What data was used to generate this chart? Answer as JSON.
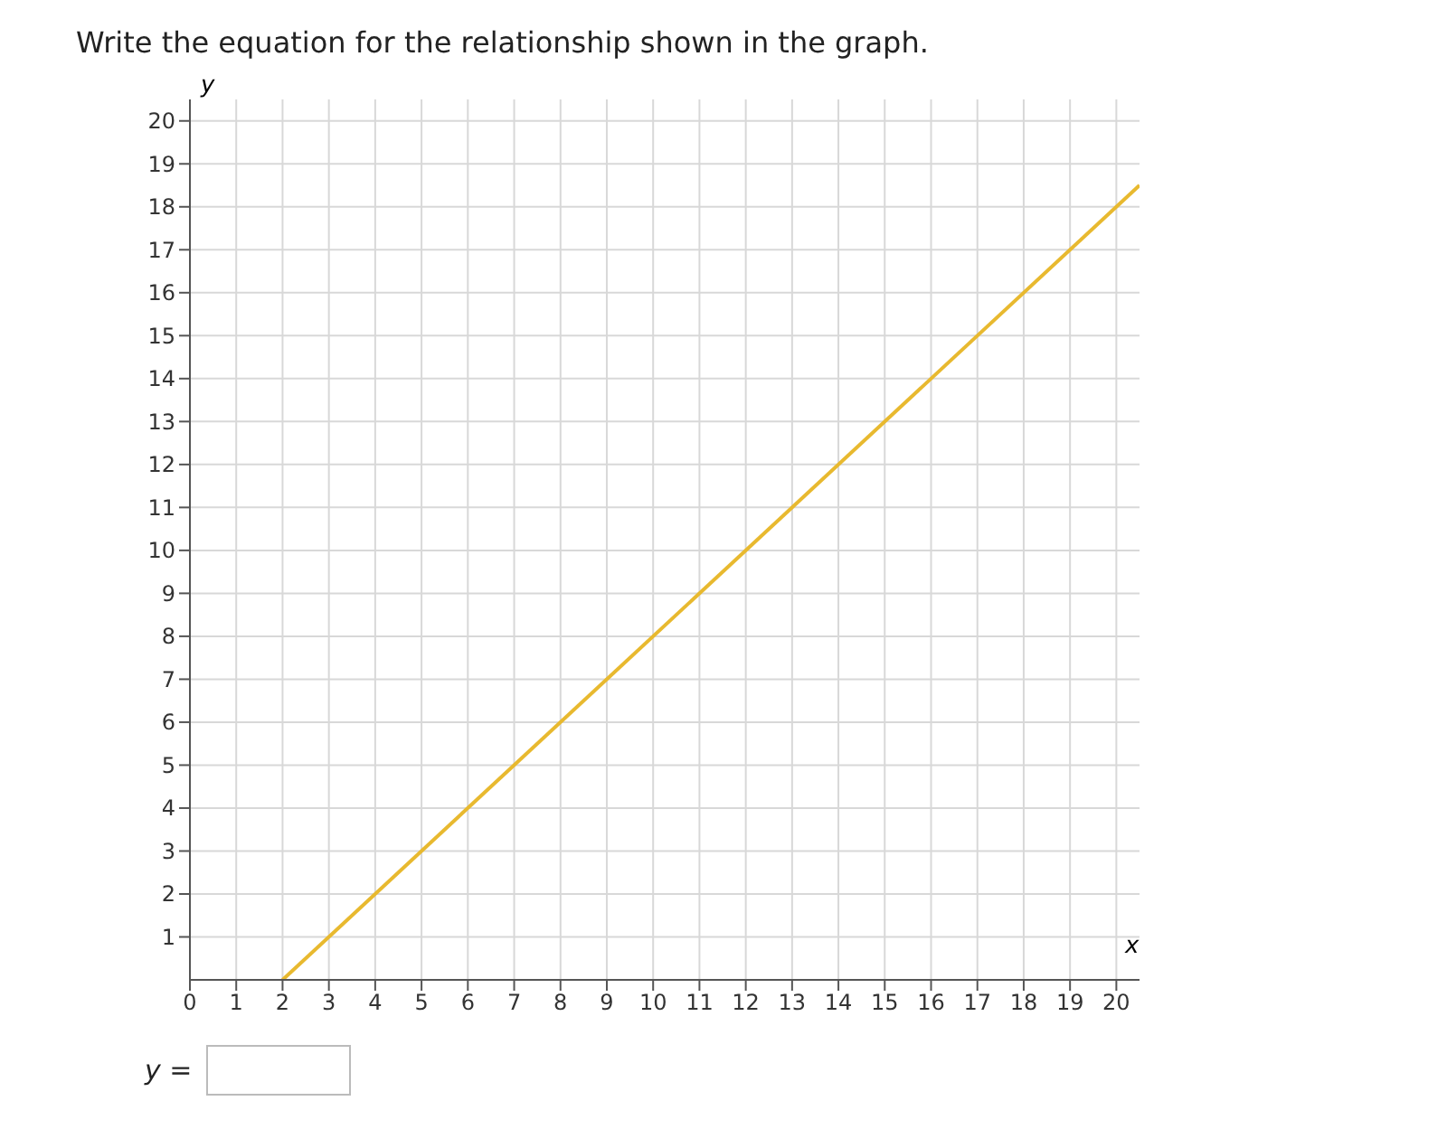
{
  "chart_data": {
    "type": "line",
    "title": "Write the equation for the relationship shown in the graph.",
    "xlabel": "x",
    "ylabel": "y",
    "annotations": [
      "y ="
    ],
    "series": [
      {
        "color": "#e8b92f",
        "x": [
          2,
          20.5
        ],
        "values": [
          0,
          18.5
        ]
      }
    ],
    "xlim": [
      0,
      20.5
    ],
    "ylim": [
      0,
      20.5
    ],
    "xticks": [
      0,
      1,
      2,
      3,
      4,
      5,
      6,
      7,
      8,
      9,
      10,
      11,
      12,
      13,
      14,
      15,
      16,
      17,
      18,
      19,
      20
    ],
    "yticks": [
      1,
      2,
      3,
      4,
      5,
      6,
      7,
      8,
      9,
      10,
      11,
      12,
      13,
      14,
      15,
      16,
      17,
      18,
      19,
      20
    ],
    "grid": true,
    "marker": "none",
    "line_style": "solid"
  }
}
